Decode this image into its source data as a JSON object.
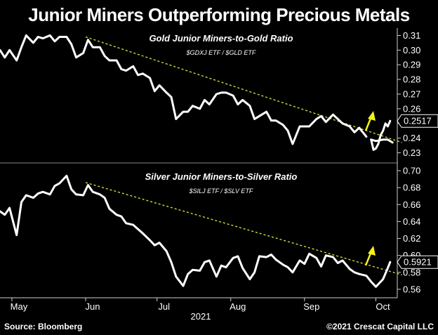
{
  "title": "Junior Miners Outperforming Precious Metals",
  "source": "Source: Bloomberg",
  "copyright": "©2021 Crescat Capital LLC",
  "x_axis": {
    "months": [
      "May",
      "Jun",
      "Jul",
      "Aug",
      "Sep",
      "Oct"
    ],
    "year": "2021"
  },
  "colors": {
    "line": "#ffffff",
    "trend": "#e8e835",
    "arrow": "#f2f21a",
    "background": "#000000"
  },
  "chart_data": [
    {
      "type": "line",
      "title": "Gold Junior Miners-to-Gold Ratio",
      "subtitle": "$GDXJ ETF / $GLD ETF",
      "x_range": [
        "2021-04-26",
        "2021-10-10"
      ],
      "ylim": [
        0.225,
        0.315
      ],
      "yticks": [
        0.23,
        0.24,
        0.25,
        0.26,
        0.27,
        0.28,
        0.29,
        0.3,
        0.31
      ],
      "ytick_labels": [
        "0.23",
        "0.24",
        "0.25",
        "0.26",
        "0.27",
        "0.28",
        "0.29",
        "0.30",
        "0.31"
      ],
      "last_value": 0.2517,
      "last_value_label": "0.2517",
      "series": [
        {
          "x": [
            "2021-04-26",
            "2021-04-28",
            "2021-04-30",
            "2021-05-03",
            "2021-05-05",
            "2021-05-07",
            "2021-05-10",
            "2021-05-12",
            "2021-05-14",
            "2021-05-17",
            "2021-05-19",
            "2021-05-21",
            "2021-05-24",
            "2021-05-26",
            "2021-05-28",
            "2021-05-31",
            "2021-06-02",
            "2021-06-04",
            "2021-06-07",
            "2021-06-09",
            "2021-06-11",
            "2021-06-14",
            "2021-06-16",
            "2021-06-18",
            "2021-06-21",
            "2021-06-23",
            "2021-06-25",
            "2021-06-28",
            "2021-06-30",
            "2021-07-02",
            "2021-07-05",
            "2021-07-07",
            "2021-07-09",
            "2021-07-12",
            "2021-07-14",
            "2021-07-16",
            "2021-07-19",
            "2021-07-21",
            "2021-07-23",
            "2021-07-26",
            "2021-07-28",
            "2021-07-30",
            "2021-08-02",
            "2021-08-04",
            "2021-08-06",
            "2021-08-09",
            "2021-08-11",
            "2021-08-13",
            "2021-08-16",
            "2021-08-18",
            "2021-08-20",
            "2021-08-23",
            "2021-08-25",
            "2021-08-27",
            "2021-08-30",
            "2021-09-01",
            "2021-09-03",
            "2021-09-06",
            "2021-09-08",
            "2021-09-10",
            "2021-09-13",
            "2021-09-15",
            "2021-09-17",
            "2021-09-20",
            "2021-09-22",
            "2021-09-24",
            "2021-09-27"
          ],
          "y": [
            0.3,
            0.295,
            0.3,
            0.293,
            0.302,
            0.31,
            0.305,
            0.309,
            0.308,
            0.31,
            0.306,
            0.309,
            0.309,
            0.304,
            0.295,
            0.298,
            0.307,
            0.302,
            0.302,
            0.296,
            0.293,
            0.293,
            0.287,
            0.286,
            0.289,
            0.283,
            0.284,
            0.281,
            0.272,
            0.276,
            0.271,
            0.268,
            0.253,
            0.258,
            0.258,
            0.262,
            0.26,
            0.266,
            0.263,
            0.27,
            0.271,
            0.271,
            0.269,
            0.263,
            0.266,
            0.262,
            0.253,
            0.255,
            0.258,
            0.252,
            0.252,
            0.249,
            0.245,
            0.236,
            0.248,
            0.248,
            0.248,
            0.253,
            0.255,
            0.251,
            0.256,
            0.253,
            0.25,
            0.248,
            0.244,
            0.247,
            0.241
          ]
        },
        {
          "x": [
            "2021-09-29",
            "2021-10-01",
            "2021-10-04",
            "2021-10-06",
            "2021-10-08"
          ],
          "y": [
            0.239,
            0.238,
            0.239,
            0.239,
            0.237
          ]
        },
        {
          "x": [
            "2021-09-29",
            "2021-09-30",
            "2021-10-01",
            "2021-10-02",
            "2021-10-03",
            "2021-10-04",
            "2021-10-05",
            "2021-10-06",
            "2021-10-07"
          ],
          "y": [
            0.239,
            0.232,
            0.233,
            0.236,
            0.242,
            0.245,
            0.25,
            0.248,
            0.2517
          ]
        }
      ],
      "trendline": {
        "x": [
          "2021-06-01",
          "2021-10-12"
        ],
        "y": [
          0.309,
          0.237
        ]
      }
    },
    {
      "type": "line",
      "title": "Silver Junior Miners-to-Silver Ratio",
      "subtitle": "$SILJ ETF / $SLV ETF",
      "x_range": [
        "2021-04-26",
        "2021-10-10"
      ],
      "ylim": [
        0.55,
        0.705
      ],
      "yticks": [
        0.56,
        0.58,
        0.6,
        0.62,
        0.64,
        0.66,
        0.68,
        0.7
      ],
      "ytick_labels": [
        "0.56",
        "0.58",
        "0.60",
        "0.62",
        "0.64",
        "0.66",
        "0.68",
        "0.70"
      ],
      "last_value": 0.5921,
      "last_value_label": "0.5921",
      "series": [
        {
          "x": [
            "2021-04-26",
            "2021-04-28",
            "2021-04-30",
            "2021-05-03",
            "2021-05-05",
            "2021-05-07",
            "2021-05-10",
            "2021-05-12",
            "2021-05-14",
            "2021-05-17",
            "2021-05-19",
            "2021-05-21",
            "2021-05-24",
            "2021-05-26",
            "2021-05-28",
            "2021-05-31",
            "2021-06-02",
            "2021-06-04",
            "2021-06-07",
            "2021-06-09",
            "2021-06-11",
            "2021-06-14",
            "2021-06-16",
            "2021-06-18",
            "2021-06-21",
            "2021-06-23",
            "2021-06-25",
            "2021-06-28",
            "2021-06-30",
            "2021-07-02",
            "2021-07-05",
            "2021-07-07",
            "2021-07-09",
            "2021-07-12",
            "2021-07-14",
            "2021-07-16",
            "2021-07-19",
            "2021-07-21",
            "2021-07-23",
            "2021-07-26",
            "2021-07-28",
            "2021-07-30",
            "2021-08-02",
            "2021-08-04",
            "2021-08-06",
            "2021-08-09",
            "2021-08-11",
            "2021-08-13",
            "2021-08-16",
            "2021-08-18",
            "2021-08-20",
            "2021-08-23",
            "2021-08-25",
            "2021-08-27",
            "2021-08-30",
            "2021-09-01",
            "2021-09-03",
            "2021-09-06",
            "2021-09-08",
            "2021-09-10",
            "2021-09-13",
            "2021-09-15",
            "2021-09-17",
            "2021-09-20",
            "2021-09-22",
            "2021-09-24",
            "2021-09-27",
            "2021-09-29",
            "2021-10-01",
            "2021-10-04",
            "2021-10-06",
            "2021-10-07"
          ],
          "y": [
            0.652,
            0.648,
            0.656,
            0.624,
            0.663,
            0.671,
            0.668,
            0.673,
            0.675,
            0.672,
            0.682,
            0.685,
            0.694,
            0.678,
            0.672,
            0.671,
            0.683,
            0.675,
            0.672,
            0.668,
            0.655,
            0.648,
            0.646,
            0.638,
            0.636,
            0.631,
            0.626,
            0.618,
            0.612,
            0.615,
            0.605,
            0.592,
            0.575,
            0.564,
            0.578,
            0.583,
            0.582,
            0.592,
            0.594,
            0.575,
            0.588,
            0.586,
            0.597,
            0.599,
            0.585,
            0.572,
            0.58,
            0.599,
            0.598,
            0.601,
            0.595,
            0.589,
            0.586,
            0.58,
            0.594,
            0.59,
            0.602,
            0.597,
            0.587,
            0.6,
            0.598,
            0.591,
            0.594,
            0.584,
            0.58,
            0.578,
            0.576,
            0.569,
            0.563,
            0.572,
            0.585,
            0.5921
          ]
        }
      ],
      "trendline": {
        "x": [
          "2021-06-01",
          "2021-10-12"
        ],
        "y": [
          0.686,
          0.577
        ]
      }
    }
  ]
}
